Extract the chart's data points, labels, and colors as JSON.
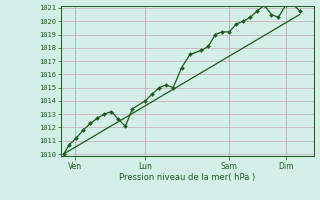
{
  "background_color": "#d4eee8",
  "grid_color": "#c8a8b8",
  "line_color": "#1a5c1a",
  "ylabel": "Pression niveau de la mer( hPa )",
  "ylim": [
    1010,
    1021
  ],
  "yticks": [
    1010,
    1011,
    1012,
    1013,
    1014,
    1015,
    1016,
    1017,
    1018,
    1019,
    1020,
    1021
  ],
  "xtick_labels": [
    "Ven",
    "Lun",
    "Sam",
    "Dim"
  ],
  "xtick_positions": [
    0.5,
    3.0,
    6.0,
    8.0
  ],
  "x_total_min": 0.0,
  "x_total_max": 9.0,
  "data_x": [
    0.1,
    0.3,
    0.55,
    0.8,
    1.05,
    1.3,
    1.55,
    1.8,
    2.05,
    2.3,
    2.55,
    3.0,
    3.25,
    3.5,
    3.75,
    4.0,
    4.3,
    4.6,
    5.0,
    5.25,
    5.5,
    5.75,
    6.0,
    6.25,
    6.5,
    6.75,
    7.0,
    7.25,
    7.5,
    7.75,
    8.0,
    8.25,
    8.5
  ],
  "data_y": [
    1010.0,
    1010.7,
    1011.2,
    1011.8,
    1012.3,
    1012.7,
    1013.0,
    1013.2,
    1012.6,
    1012.1,
    1013.4,
    1014.0,
    1014.5,
    1015.0,
    1015.2,
    1015.0,
    1016.5,
    1017.5,
    1017.8,
    1018.1,
    1019.0,
    1019.2,
    1019.2,
    1019.8,
    1020.0,
    1020.3,
    1020.8,
    1021.2,
    1020.5,
    1020.3,
    1021.2,
    1021.3,
    1020.8
  ],
  "trend_x": [
    0.1,
    8.5
  ],
  "trend_y": [
    1010.0,
    1020.5
  ],
  "fig_width": 3.2,
  "fig_height": 2.0,
  "dpi": 100
}
